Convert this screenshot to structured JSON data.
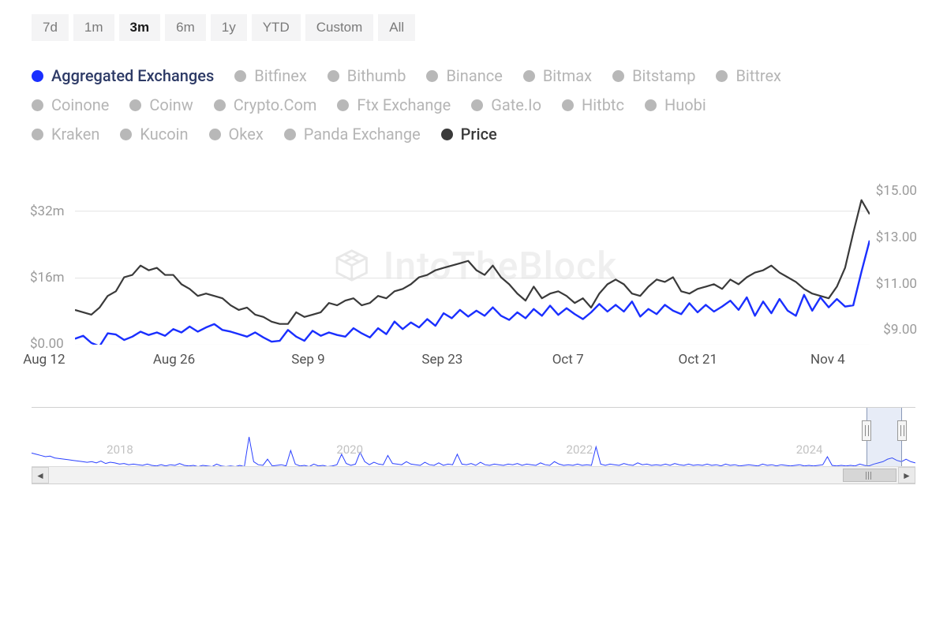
{
  "colors": {
    "primary_blue": "#1a2fff",
    "dark_gray": "#3a3a3a",
    "inactive_gray": "#b8b8b8",
    "inactive_text": "#b5b5b5",
    "axis_text": "#9a9a9a",
    "x_axis_text": "#525252",
    "gridline": "#e3e3e3",
    "watermark": "#efefef",
    "btn_bg": "#f4f4f5"
  },
  "timeRanges": {
    "items": [
      "7d",
      "1m",
      "3m",
      "6m",
      "1y",
      "YTD",
      "Custom",
      "All"
    ],
    "active": "3m"
  },
  "legend": {
    "items": [
      {
        "label": "Aggregated Exchanges",
        "color": "#1a2fff",
        "active": true
      },
      {
        "label": "Bitfinex",
        "color": "#b8b8b8",
        "active": false
      },
      {
        "label": "Bithumb",
        "color": "#b8b8b8",
        "active": false
      },
      {
        "label": "Binance",
        "color": "#b8b8b8",
        "active": false
      },
      {
        "label": "Bitmax",
        "color": "#b8b8b8",
        "active": false
      },
      {
        "label": "Bitstamp",
        "color": "#b8b8b8",
        "active": false
      },
      {
        "label": "Bittrex",
        "color": "#b8b8b8",
        "active": false
      },
      {
        "label": "Coinone",
        "color": "#b8b8b8",
        "active": false
      },
      {
        "label": "Coinw",
        "color": "#b8b8b8",
        "active": false
      },
      {
        "label": "Crypto.Com",
        "color": "#b8b8b8",
        "active": false
      },
      {
        "label": "Ftx Exchange",
        "color": "#b8b8b8",
        "active": false
      },
      {
        "label": "Gate.Io",
        "color": "#b8b8b8",
        "active": false
      },
      {
        "label": "Hitbtc",
        "color": "#b8b8b8",
        "active": false
      },
      {
        "label": "Huobi",
        "color": "#b8b8b8",
        "active": false
      },
      {
        "label": "Kraken",
        "color": "#b8b8b8",
        "active": false
      },
      {
        "label": "Kucoin",
        "color": "#b8b8b8",
        "active": false
      },
      {
        "label": "Okex",
        "color": "#b8b8b8",
        "active": false
      },
      {
        "label": "Panda Exchange",
        "color": "#b8b8b8",
        "active": false
      },
      {
        "label": "Price",
        "color": "#3a3a3a",
        "active": true
      }
    ]
  },
  "chart": {
    "type": "line-dual-axis",
    "watermark_text": "IntoTheBlock",
    "left_axis": {
      "ylim": [
        0,
        38
      ],
      "ticks": [
        {
          "v": 0,
          "label": "$0.00"
        },
        {
          "v": 16,
          "label": "$16m"
        },
        {
          "v": 32,
          "label": "$32m"
        }
      ]
    },
    "right_axis": {
      "ylim": [
        8.4,
        15.2
      ],
      "ticks": [
        {
          "v": 9,
          "label": "$9.00"
        },
        {
          "v": 11,
          "label": "$11.00"
        },
        {
          "v": 13,
          "label": "$13.00"
        },
        {
          "v": 15,
          "label": "$15.00"
        }
      ]
    },
    "x_axis": {
      "range_pct": [
        0,
        100
      ],
      "ticks": [
        {
          "pct": 1.5,
          "label": "Aug 12"
        },
        {
          "pct": 17,
          "label": "Aug 26"
        },
        {
          "pct": 33,
          "label": "Sep 9"
        },
        {
          "pct": 49,
          "label": "Sep 23"
        },
        {
          "pct": 64,
          "label": "Oct 7"
        },
        {
          "pct": 79.5,
          "label": "Oct 21"
        },
        {
          "pct": 95,
          "label": "Nov 4"
        }
      ]
    },
    "series": [
      {
        "name": "Aggregated Exchanges",
        "axis": "left",
        "color": "#1a2fff",
        "line_width": 2.4,
        "data": [
          1.5,
          2.2,
          0.5,
          -0.3,
          2.8,
          2.5,
          1.2,
          2.0,
          3.2,
          2.4,
          3.0,
          2.2,
          3.8,
          3.0,
          4.4,
          3.2,
          4.2,
          5.0,
          3.6,
          3.2,
          2.6,
          2.0,
          3.0,
          1.8,
          0.8,
          1.0,
          3.6,
          2.0,
          1.0,
          3.4,
          2.2,
          3.0,
          2.4,
          2.0,
          4.0,
          2.8,
          1.8,
          4.0,
          2.6,
          5.6,
          3.8,
          5.4,
          4.2,
          6.2,
          4.6,
          7.6,
          6.4,
          8.4,
          6.8,
          8.2,
          7.0,
          9.0,
          7.0,
          6.0,
          7.8,
          6.4,
          8.6,
          7.0,
          9.4,
          7.2,
          8.8,
          7.4,
          6.2,
          7.8,
          9.8,
          8.0,
          9.6,
          8.0,
          10.4,
          6.8,
          8.6,
          7.4,
          9.6,
          8.2,
          7.4,
          10.0,
          7.8,
          9.6,
          8.0,
          9.2,
          10.6,
          8.4,
          11.4,
          7.0,
          10.4,
          7.6,
          11.0,
          8.2,
          7.0,
          12.0,
          8.2,
          11.4,
          9.0,
          11.0,
          9.2,
          9.5,
          17.5,
          25.0
        ]
      },
      {
        "name": "Price",
        "axis": "right",
        "color": "#3a3a3a",
        "line_width": 2.2,
        "data": [
          9.9,
          9.8,
          9.7,
          10.0,
          10.5,
          10.7,
          11.3,
          11.4,
          11.8,
          11.6,
          11.7,
          11.4,
          11.4,
          11.0,
          10.8,
          10.5,
          10.6,
          10.5,
          10.4,
          10.1,
          9.9,
          10.0,
          9.7,
          9.6,
          9.4,
          9.3,
          9.3,
          9.8,
          9.6,
          9.7,
          9.8,
          10.2,
          10.1,
          10.3,
          10.4,
          10.1,
          10.2,
          10.5,
          10.4,
          10.7,
          10.8,
          11.0,
          11.3,
          11.4,
          11.6,
          11.7,
          11.8,
          11.9,
          12.0,
          11.6,
          11.4,
          11.8,
          11.3,
          11.0,
          10.6,
          10.3,
          10.9,
          10.4,
          10.6,
          10.7,
          10.5,
          10.2,
          10.4,
          10.0,
          10.6,
          11.0,
          11.2,
          11.0,
          10.6,
          10.5,
          10.9,
          11.2,
          11.1,
          11.3,
          10.7,
          10.6,
          10.8,
          10.9,
          11.0,
          10.8,
          11.2,
          11.0,
          11.3,
          11.5,
          11.6,
          11.8,
          11.5,
          11.3,
          11.1,
          10.8,
          10.6,
          10.5,
          10.4,
          10.9,
          11.7,
          13.2,
          14.6,
          14.0
        ]
      }
    ]
  },
  "navigator": {
    "years": [
      {
        "pct": 10,
        "label": "2018"
      },
      {
        "pct": 36,
        "label": "2020"
      },
      {
        "pct": 62,
        "label": "2022"
      },
      {
        "pct": 88,
        "label": "2024"
      }
    ],
    "selection_pct": {
      "start": 94.5,
      "end": 98.5
    },
    "scroll_thumb_pct": {
      "start": 93.5,
      "end": 99.8
    },
    "series": {
      "color": "#2a40ff",
      "line_width": 1,
      "ylim": [
        0,
        100
      ],
      "data": [
        32,
        30,
        28,
        26,
        27,
        24,
        23,
        22,
        21,
        20,
        19,
        18,
        17,
        18,
        16,
        19,
        15,
        17,
        16,
        14,
        15,
        13,
        14,
        13,
        12,
        14,
        12,
        11,
        13,
        11,
        13,
        12,
        15,
        12,
        11,
        12,
        10,
        12,
        11,
        10,
        14,
        11,
        10,
        11,
        10,
        12,
        10,
        58,
        18,
        13,
        12,
        22,
        11,
        12,
        13,
        11,
        36,
        14,
        11,
        12,
        10,
        14,
        11,
        12,
        10,
        11,
        13,
        30,
        15,
        12,
        14,
        33,
        18,
        13,
        17,
        14,
        13,
        28,
        15,
        14,
        13,
        18,
        14,
        13,
        12,
        17,
        13,
        12,
        16,
        12,
        14,
        13,
        30,
        14,
        13,
        15,
        12,
        17,
        13,
        12,
        14,
        13,
        12,
        14,
        13,
        15,
        12,
        14,
        13,
        12,
        16,
        13,
        12,
        18,
        14,
        12,
        13,
        12,
        14,
        12,
        13,
        12,
        42,
        14,
        12,
        14,
        13,
        12,
        15,
        13,
        12,
        16,
        13,
        14,
        12,
        13,
        12,
        14,
        12,
        15,
        13,
        12,
        14,
        12,
        13,
        12,
        14,
        12,
        13,
        11,
        14,
        12,
        13,
        11,
        12,
        13,
        12,
        11,
        14,
        12,
        13,
        11,
        13,
        12,
        11,
        12,
        13,
        11,
        12,
        11,
        12,
        13,
        26,
        12,
        11,
        12,
        11,
        12,
        11,
        14,
        12,
        11,
        14,
        16,
        18,
        22,
        24,
        20,
        18,
        22,
        18,
        16
      ]
    }
  }
}
